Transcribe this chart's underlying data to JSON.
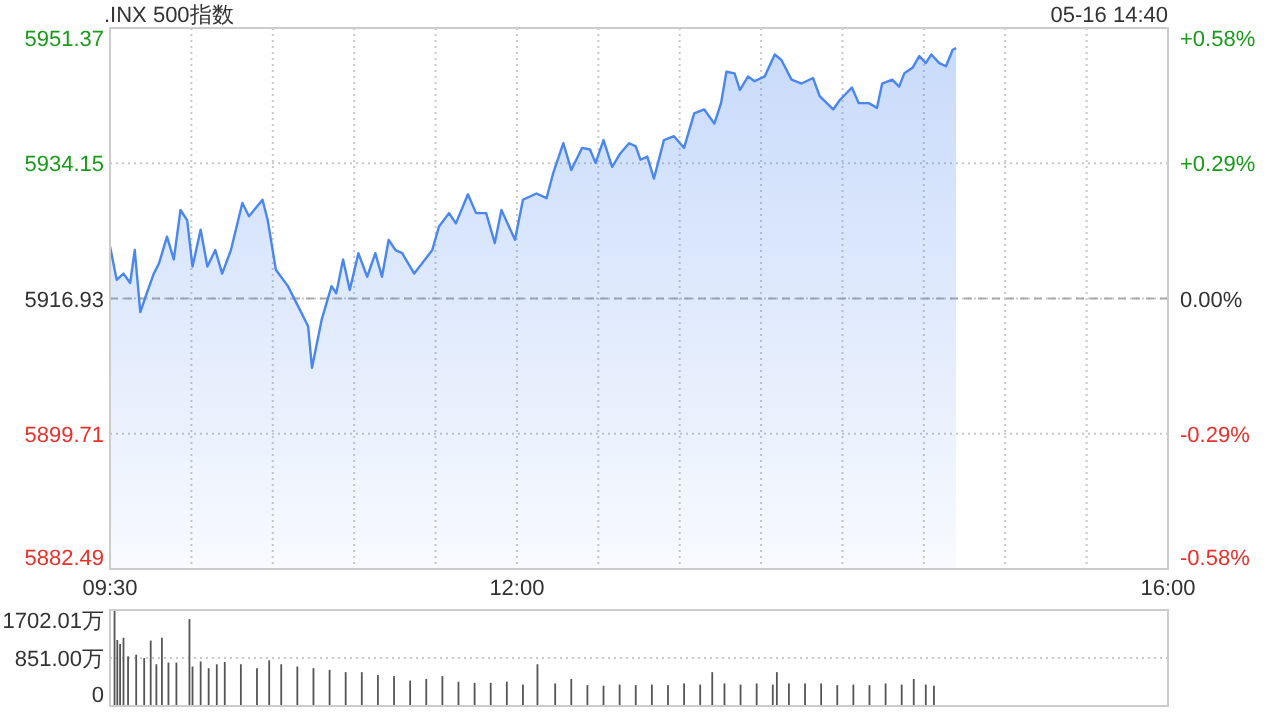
{
  "chart_data": [
    {
      "type": "area",
      "title": ".INX 500指数",
      "annotations": [
        "05-16 14:40"
      ],
      "x": [
        9.5,
        9.541,
        9.583,
        9.624,
        9.652,
        9.686,
        9.726,
        9.769,
        9.801,
        9.85,
        9.892,
        9.933,
        9.974,
        10.007,
        10.057,
        10.098,
        10.147,
        10.189,
        10.243,
        10.313,
        10.354,
        10.437,
        10.469,
        10.519,
        10.593,
        10.676,
        10.717,
        10.741,
        10.8,
        10.861,
        10.89,
        10.932,
        10.973,
        11.026,
        11.08,
        11.13,
        11.171,
        11.212,
        11.254,
        11.295,
        11.369,
        11.48,
        11.521,
        11.583,
        11.625,
        11.699,
        11.749,
        11.811,
        11.864,
        11.905,
        11.988,
        12.037,
        12.12,
        12.182,
        12.223,
        12.285,
        12.334,
        12.4,
        12.449,
        12.483,
        12.532,
        12.585,
        12.635,
        12.689,
        12.73,
        12.759,
        12.801,
        12.842,
        12.903,
        12.965,
        13.027,
        13.089,
        13.151,
        13.213,
        13.254,
        13.287,
        13.337,
        13.37,
        13.42,
        13.46,
        13.522,
        13.584,
        13.625,
        13.687,
        13.749,
        13.819,
        13.86,
        13.943,
        13.984,
        14.058,
        14.1,
        14.162,
        14.212,
        14.244,
        14.306,
        14.348,
        14.38,
        14.43,
        14.472,
        14.512,
        14.546,
        14.595,
        14.636,
        14.677,
        14.698
      ],
      "series": [
        {
          "color": "#4a86f0",
          "values": [
            5923.6,
            5919.3,
            5920.1,
            5918.9,
            5923.1,
            5915.2,
            5917.6,
            5920.1,
            5921.4,
            5924.8,
            5921.9,
            5928.2,
            5926.9,
            5921.0,
            5925.7,
            5921.0,
            5923.1,
            5920.1,
            5923.1,
            5929.1,
            5927.4,
            5929.5,
            5926.9,
            5920.6,
            5918.5,
            5915.1,
            5913.4,
            5908.1,
            5914.2,
            5918.5,
            5917.6,
            5921.9,
            5918.0,
            5922.7,
            5919.7,
            5922.7,
            5919.7,
            5924.4,
            5923.1,
            5922.7,
            5920.1,
            5923.1,
            5926.1,
            5927.8,
            5926.5,
            5930.2,
            5927.8,
            5927.8,
            5924.0,
            5928.2,
            5924.4,
            5929.5,
            5930.3,
            5929.7,
            5932.9,
            5936.7,
            5933.3,
            5936.1,
            5935.9,
            5934.2,
            5937.1,
            5933.7,
            5935.4,
            5936.7,
            5936.3,
            5934.6,
            5935.0,
            5932.2,
            5937.1,
            5937.6,
            5936.1,
            5940.5,
            5941.0,
            5939.2,
            5941.8,
            5945.8,
            5945.6,
            5943.5,
            5945.2,
            5944.6,
            5945.2,
            5948.0,
            5947.3,
            5944.8,
            5944.3,
            5945.0,
            5942.7,
            5941.0,
            5942.2,
            5943.8,
            5941.8,
            5941.8,
            5941.2,
            5944.3,
            5944.8,
            5943.9,
            5945.6,
            5946.3,
            5947.8,
            5946.9,
            5948.0,
            5946.9,
            5946.5,
            5948.6,
            5948.8
          ]
        }
      ],
      "xlim": [
        9.5,
        16
      ],
      "xticks": [
        {
          "value": 9.5,
          "label": "09:30"
        },
        {
          "value": 10,
          "label": null
        },
        {
          "value": 10.5,
          "label": null
        },
        {
          "value": 11,
          "label": null
        },
        {
          "value": 11.5,
          "label": null
        },
        {
          "value": 12,
          "label": "12:00"
        },
        {
          "value": 12.5,
          "label": null
        },
        {
          "value": 13,
          "label": null
        },
        {
          "value": 13.5,
          "label": null
        },
        {
          "value": 14,
          "label": null
        },
        {
          "value": 14.5,
          "label": null
        },
        {
          "value": 15,
          "label": null
        },
        {
          "value": 15.5,
          "label": null
        },
        {
          "value": 16,
          "label": "16:00"
        }
      ],
      "ylim": [
        5882.49,
        5951.37
      ],
      "yticks": [
        5882.49,
        5899.71,
        5916.93,
        5934.15,
        5951.37
      ],
      "y2lim": [
        -0.58,
        0.58
      ],
      "y2ticks": [
        {
          "value": -0.58,
          "label": "-0.58%"
        },
        {
          "value": -0.29,
          "label": "-0.29%"
        },
        {
          "value": 0,
          "label": "0.00%"
        },
        {
          "value": 0.29,
          "label": "+0.29%"
        },
        {
          "value": 0.58,
          "label": "+0.58%"
        }
      ],
      "grid": true,
      "ref_lines": [
        {
          "axis": "y",
          "value": 5916.93,
          "line_style": "dashed"
        }
      ]
    },
    {
      "type": "bar",
      "color": "#555555",
      "x": [
        9.528,
        9.545,
        9.562,
        9.583,
        9.611,
        9.661,
        9.71,
        9.75,
        9.785,
        9.819,
        9.859,
        9.908,
        9.988,
        10.007,
        10.057,
        10.106,
        10.156,
        10.205,
        10.304,
        10.403,
        10.478,
        10.552,
        10.651,
        10.75,
        10.849,
        10.948,
        11.047,
        11.146,
        11.245,
        11.344,
        11.443,
        11.542,
        11.641,
        11.74,
        11.839,
        11.938,
        12.037,
        12.126,
        12.235,
        12.334,
        12.433,
        12.532,
        12.631,
        12.73,
        12.829,
        12.928,
        13.027,
        13.126,
        13.2,
        13.275,
        13.374,
        13.473,
        13.572,
        13.597,
        13.671,
        13.77,
        13.869,
        13.968,
        14.067,
        14.166,
        14.265,
        14.364,
        14.438,
        14.512,
        14.562
      ],
      "values": [
        1700,
        1170,
        1100,
        1210,
        880,
        910,
        850,
        1160,
        740,
        1210,
        770,
        770,
        1540,
        700,
        790,
        670,
        740,
        780,
        740,
        670,
        810,
        740,
        700,
        670,
        640,
        600,
        600,
        550,
        530,
        450,
        480,
        530,
        430,
        410,
        410,
        430,
        380,
        740,
        400,
        480,
        370,
        360,
        380,
        370,
        380,
        370,
        400,
        380,
        600,
        400,
        380,
        400,
        380,
        600,
        400,
        400,
        400,
        370,
        380,
        370,
        400,
        380,
        480,
        380,
        360
      ],
      "xlim": [
        9.5,
        16
      ],
      "ylim": [
        0,
        1702.01
      ],
      "yticks": [
        0,
        {
          "value": 851.0,
          "label": "851.00万"
        },
        {
          "value": 1702.01,
          "label": "1702.01万"
        }
      ],
      "grid": "y",
      "tick_labels": "y"
    }
  ]
}
